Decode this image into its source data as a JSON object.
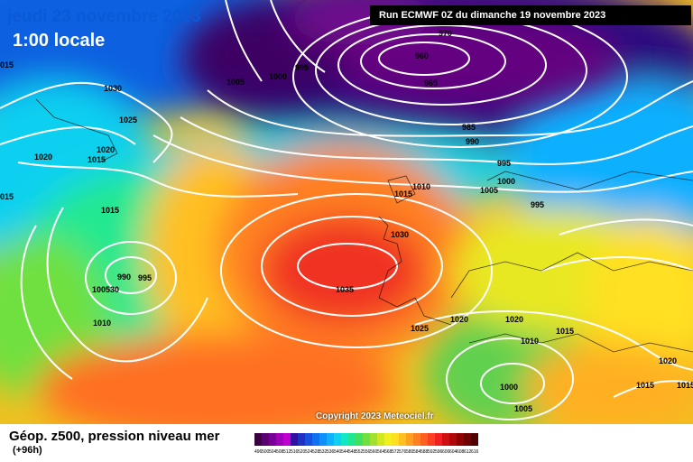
{
  "header": {
    "date_line": "jeudi 23 novembre 2023",
    "time_line": "1:00 locale",
    "run_info": "Run ECMWF 0Z du dimanche 19 novembre 2023"
  },
  "footer": {
    "product": "Géop. z500, pression niveau mer",
    "forecast_hour": "(+96h)",
    "copyright": "Copyright 2023 Meteociel.fr"
  },
  "legend": {
    "ticks": [
      "496",
      "500",
      "504",
      "508",
      "512",
      "516",
      "520",
      "524",
      "528",
      "532",
      "536",
      "540",
      "544",
      "548",
      "552",
      "556",
      "560",
      "564",
      "568",
      "572",
      "576",
      "580",
      "584",
      "588",
      "592",
      "596",
      "600",
      "604",
      "608",
      "612",
      "616"
    ],
    "colors": [
      "#3a0040",
      "#5a0070",
      "#7a0095",
      "#9d00b8",
      "#c000d0",
      "#3010a0",
      "#2030c0",
      "#1850e0",
      "#1070f0",
      "#1090ff",
      "#10b0ff",
      "#10d0f0",
      "#10e8c8",
      "#20e890",
      "#40e060",
      "#70e040",
      "#a0e030",
      "#d0e820",
      "#f0f020",
      "#ffe020",
      "#ffc020",
      "#ffa020",
      "#ff8020",
      "#ff6020",
      "#ff4020",
      "#f02020",
      "#d01010",
      "#b00808",
      "#900000",
      "#700000",
      "#500000"
    ]
  },
  "isobars": [
    {
      "text": "970"
    },
    {
      "text": "960"
    },
    {
      "text": "965"
    },
    {
      "text": "985"
    },
    {
      "text": "990"
    },
    {
      "text": "995"
    },
    {
      "text": "1000"
    },
    {
      "text": "1005"
    },
    {
      "text": "1005"
    },
    {
      "text": "1000"
    },
    {
      "text": "995"
    },
    {
      "text": "1030"
    },
    {
      "text": "1025"
    },
    {
      "text": "1020"
    },
    {
      "text": "1015"
    },
    {
      "text": "1020"
    },
    {
      "text": "1015"
    },
    {
      "text": "015"
    },
    {
      "text": "015"
    },
    {
      "text": "1015"
    },
    {
      "text": "1010"
    },
    {
      "text": "1030"
    },
    {
      "text": "1035"
    },
    {
      "text": "1025"
    },
    {
      "text": "1020"
    },
    {
      "text": "1020"
    },
    {
      "text": "1010"
    },
    {
      "text": "1015"
    },
    {
      "text": "1000"
    },
    {
      "text": "1005"
    },
    {
      "text": "1020"
    },
    {
      "text": "1015"
    },
    {
      "text": "1015"
    },
    {
      "text": "990"
    },
    {
      "text": "995"
    },
    {
      "text": "100530"
    },
    {
      "text": "1010"
    },
    {
      "text": "995"
    }
  ]
}
